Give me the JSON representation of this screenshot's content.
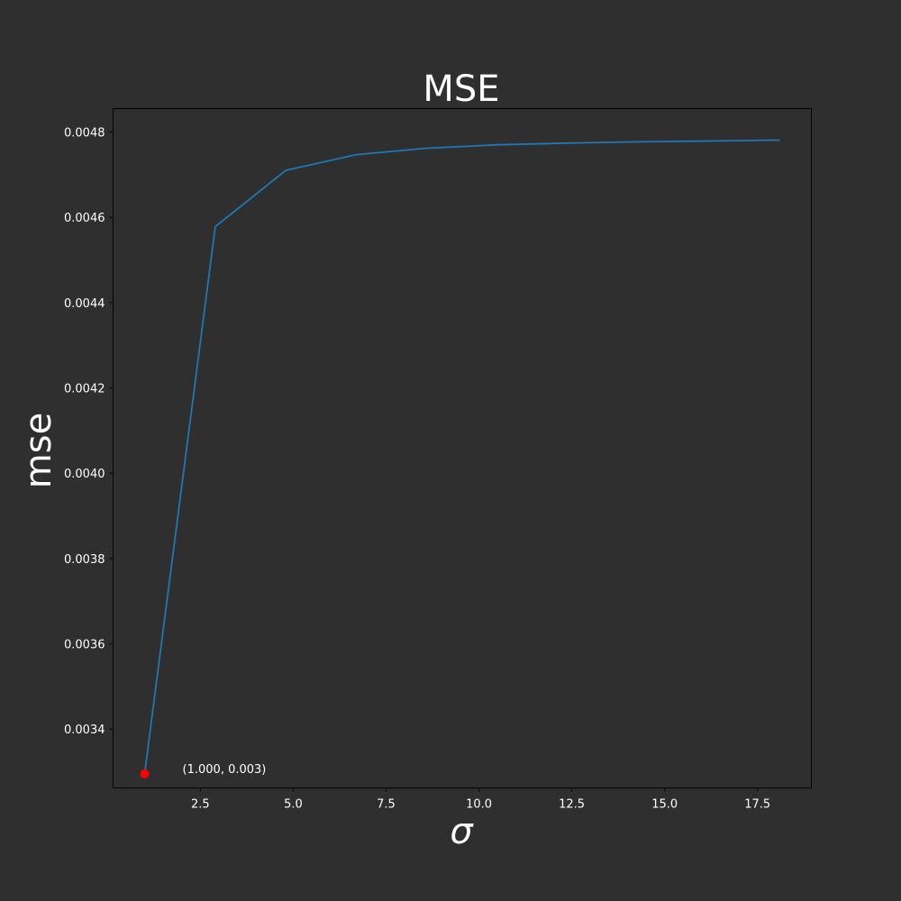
{
  "chart_data": {
    "type": "line",
    "title": "MSE",
    "xlabel": "σ",
    "ylabel": "mse",
    "xlim": [
      0.15,
      18.95
    ],
    "ylim": [
      0.003262,
      0.004855
    ],
    "x_ticks": [
      2.5,
      5.0,
      7.5,
      10.0,
      12.5,
      15.0,
      17.5
    ],
    "x_tick_labels": [
      "2.5",
      "5.0",
      "7.5",
      "10.0",
      "12.5",
      "15.0",
      "17.5"
    ],
    "y_ticks": [
      0.0034,
      0.0036,
      0.0038,
      0.004,
      0.0042,
      0.0044,
      0.0046,
      0.0048
    ],
    "y_tick_labels": [
      "0.0034",
      "0.0036",
      "0.0038",
      "0.0040",
      "0.0042",
      "0.0044",
      "0.0046",
      "0.0048"
    ],
    "grid": false,
    "series": [
      {
        "color": "#1f77b4",
        "x": [
          1.0,
          2.9,
          4.8,
          6.7,
          8.6,
          10.5,
          12.4,
          14.3,
          16.2,
          18.1
        ],
        "y": [
          0.003295,
          0.004578,
          0.00471,
          0.004747,
          0.004762,
          0.00477,
          0.004774,
          0.004777,
          0.004779,
          0.004781
        ]
      }
    ],
    "highlight": {
      "x": 1.0,
      "y": 0.003295,
      "color": "#ff0000",
      "label": "(1.000, 0.003)"
    },
    "colors": {
      "background": "#2f2f2f",
      "text": "#ffffff",
      "spine": "#000000"
    }
  }
}
